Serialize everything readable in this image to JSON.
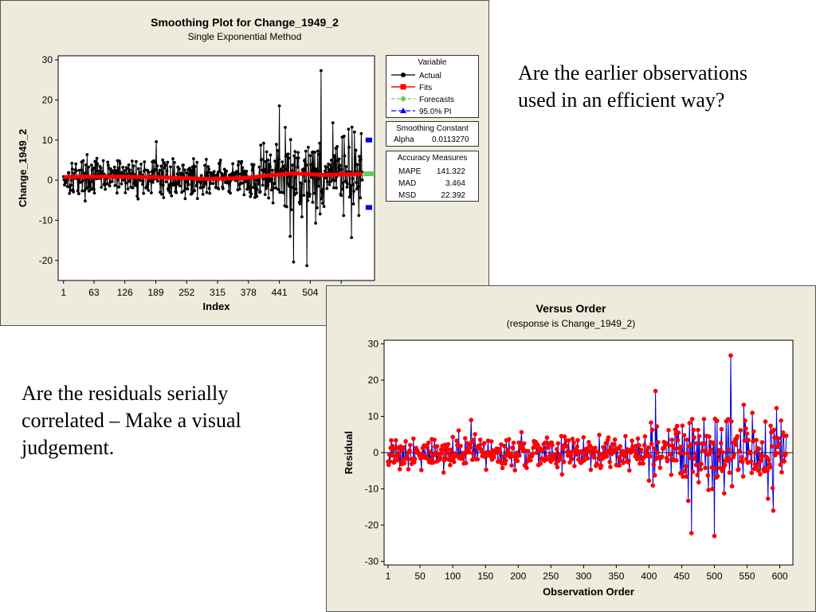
{
  "question_top": "Are the earlier observations used in an efficient way?",
  "question_bottom": "Are the residuals serially correlated – Make a visual judgement.",
  "chart_data": [
    {
      "type": "line",
      "title": "Smoothing Plot for Change_1949_2",
      "subtitle": "Single Exponential Method",
      "xlabel": "Index",
      "ylabel": "Change_1949_2",
      "xlim": [
        1,
        610
      ],
      "ylim": [
        -25,
        31
      ],
      "x_ticks": [
        "1",
        "63",
        "126",
        "189",
        "252",
        "315",
        "378",
        "441",
        "504"
      ],
      "x_tick_values": [
        1,
        63,
        126,
        189,
        252,
        315,
        378,
        441,
        504
      ],
      "y_ticks": [
        "30",
        "20",
        "10",
        "0",
        "-10",
        "-20"
      ],
      "y_tick_values": [
        30,
        20,
        10,
        0,
        -10,
        -20
      ],
      "n_points": 610,
      "colors": {
        "actual": "#000000",
        "fits": "#ff0000",
        "forecasts": "#66cc66",
        "pi": "#0000ee"
      },
      "notable_actual_points": [
        {
          "x": 190,
          "y": 9.6
        },
        {
          "x": 441,
          "y": 18.5
        },
        {
          "x": 463,
          "y": -14
        },
        {
          "x": 470,
          "y": -20.4
        },
        {
          "x": 497,
          "y": -21.3
        },
        {
          "x": 526,
          "y": 27.3
        },
        {
          "x": 550,
          "y": 14.3
        },
        {
          "x": 588,
          "y": -14.3
        },
        {
          "x": 594,
          "y": 12
        }
      ],
      "fits_path": [
        {
          "x": 1,
          "y": 0.8
        },
        {
          "x": 100,
          "y": 0.9
        },
        {
          "x": 200,
          "y": 0.7
        },
        {
          "x": 300,
          "y": 0.3
        },
        {
          "x": 378,
          "y": 0.6
        },
        {
          "x": 420,
          "y": 1.2
        },
        {
          "x": 470,
          "y": 1.7
        },
        {
          "x": 530,
          "y": 1.3
        },
        {
          "x": 610,
          "y": 1.6
        }
      ],
      "forecasts": {
        "x_range": [
          612,
          635
        ],
        "value": 1.6
      },
      "pi_upper": 10.0,
      "pi_lower": -6.8,
      "legend": {
        "heading": "Variable",
        "items": [
          "Actual",
          "Fits",
          "Forecasts",
          "95.0% PI"
        ]
      },
      "smoothing_constant": {
        "heading": "Smoothing Constant",
        "label": "Alpha",
        "value": "0.0113270"
      },
      "accuracy_measures": {
        "heading": "Accuracy Measures",
        "rows": [
          {
            "label": "MAPE",
            "value": "141.322"
          },
          {
            "label": "MAD",
            "value": "3.464"
          },
          {
            "label": "MSD",
            "value": "22.392"
          }
        ]
      }
    },
    {
      "type": "line",
      "title": "Versus Order",
      "subtitle": "(response is Change_1949_2)",
      "xlabel": "Observation Order",
      "ylabel": "Residual",
      "xlim": [
        -5,
        620
      ],
      "ylim": [
        -31,
        31
      ],
      "x_ticks": [
        "1",
        "50",
        "100",
        "150",
        "200",
        "250",
        "300",
        "350",
        "400",
        "450",
        "500",
        "550",
        "600"
      ],
      "x_tick_values": [
        1,
        50,
        100,
        150,
        200,
        250,
        300,
        350,
        400,
        450,
        500,
        550,
        600
      ],
      "y_ticks": [
        "30",
        "20",
        "10",
        "0",
        "-10",
        "-20",
        "-30"
      ],
      "y_tick_values": [
        30,
        20,
        10,
        0,
        -10,
        -20,
        -30
      ],
      "n_points": 610,
      "colors": {
        "line": "#0000dd",
        "points": "#ff0000",
        "reference": "#000000"
      },
      "notable_points": [
        {
          "x": 128,
          "y": 9
        },
        {
          "x": 410,
          "y": 17
        },
        {
          "x": 460,
          "y": -13.3
        },
        {
          "x": 465,
          "y": -22.2
        },
        {
          "x": 500,
          "y": -23
        },
        {
          "x": 525,
          "y": 26.8
        },
        {
          "x": 545,
          "y": 13.2
        },
        {
          "x": 582,
          "y": -12.7
        },
        {
          "x": 590,
          "y": -16
        },
        {
          "x": 595,
          "y": 12.3
        }
      ]
    }
  ]
}
